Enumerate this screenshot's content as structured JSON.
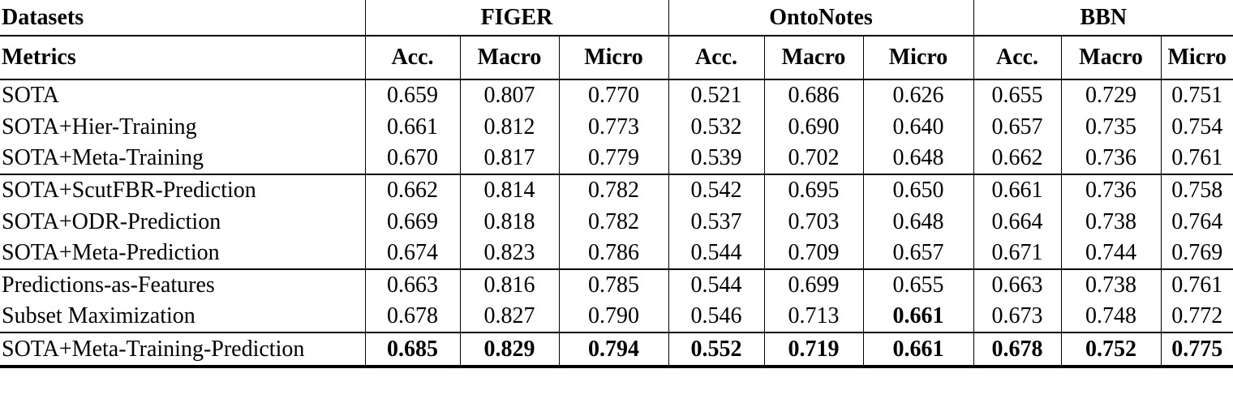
{
  "table": {
    "corner_label": "Datasets",
    "metrics_label": "Metrics",
    "groups": [
      "FIGER",
      "OntoNotes",
      "BBN"
    ],
    "metric_columns": [
      "Acc.",
      "Macro",
      "Micro",
      "Acc.",
      "Macro",
      "Micro",
      "Acc.",
      "Macro",
      "Micro"
    ],
    "colors": {
      "text": "#000000",
      "background": "#ffffff",
      "rule": "#000000"
    },
    "blocks": [
      {
        "rows": [
          {
            "label": "SOTA",
            "values": [
              "0.659",
              "0.807",
              "0.770",
              "0.521",
              "0.686",
              "0.626",
              "0.655",
              "0.729",
              "0.751"
            ]
          },
          {
            "label": "SOTA+Hier-Training",
            "values": [
              "0.661",
              "0.812",
              "0.773",
              "0.532",
              "0.690",
              "0.640",
              "0.657",
              "0.735",
              "0.754"
            ]
          },
          {
            "label": "SOTA+Meta-Training",
            "values": [
              "0.670",
              "0.817",
              "0.779",
              "0.539",
              "0.702",
              "0.648",
              "0.662",
              "0.736",
              "0.761"
            ]
          }
        ]
      },
      {
        "rows": [
          {
            "label": "SOTA+ScutFBR-Prediction",
            "values": [
              "0.662",
              "0.814",
              "0.782",
              "0.542",
              "0.695",
              "0.650",
              "0.661",
              "0.736",
              "0.758"
            ]
          },
          {
            "label": "SOTA+ODR-Prediction",
            "values": [
              "0.669",
              "0.818",
              "0.782",
              "0.537",
              "0.703",
              "0.648",
              "0.664",
              "0.738",
              "0.764"
            ]
          },
          {
            "label": "SOTA+Meta-Prediction",
            "values": [
              "0.674",
              "0.823",
              "0.786",
              "0.544",
              "0.709",
              "0.657",
              "0.671",
              "0.744",
              "0.769"
            ]
          }
        ]
      },
      {
        "rows": [
          {
            "label": "Predictions-as-Features",
            "values": [
              "0.663",
              "0.816",
              "0.785",
              "0.544",
              "0.699",
              "0.655",
              "0.663",
              "0.738",
              "0.761"
            ]
          },
          {
            "label": "Subset Maximization",
            "values": [
              "0.678",
              "0.827",
              "0.790",
              "0.546",
              "0.713",
              "0.661",
              "0.673",
              "0.748",
              "0.772"
            ],
            "bold_value_indices": [
              5
            ]
          }
        ]
      },
      {
        "rows": [
          {
            "label": "SOTA+Meta-Training-Prediction",
            "values": [
              "0.685",
              "0.829",
              "0.794",
              "0.552",
              "0.719",
              "0.661",
              "0.678",
              "0.752",
              "0.775"
            ],
            "bold_value_indices": [
              0,
              1,
              2,
              3,
              4,
              5,
              6,
              7,
              8
            ]
          }
        ]
      }
    ]
  }
}
